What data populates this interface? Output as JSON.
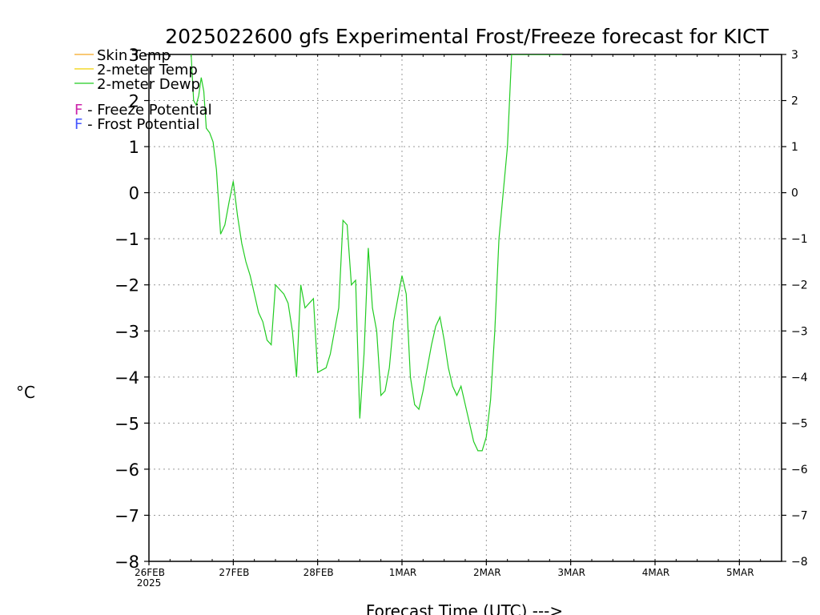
{
  "chart_data": {
    "type": "line",
    "title": "2025022600 gfs Experimental Frost/Freeze forecast for KICT",
    "ylabel": "°C",
    "xlabel": "Forecast Time (UTC) --->",
    "ylim": [
      -8,
      3
    ],
    "xlim": [
      0,
      7.5
    ],
    "grid": true,
    "y_ticks": [
      "−8",
      "−7",
      "−6",
      "−5",
      "−4",
      "−3",
      "−2",
      "−1",
      "0",
      "1",
      "2",
      "3"
    ],
    "y_ticks_right": [
      "−8",
      "−7",
      "−6",
      "−5",
      "−4",
      "−3",
      "−2",
      "−1",
      "0",
      "1",
      "2",
      "3"
    ],
    "x_ticks": [
      {
        "label": "26FEB",
        "sub": "2025",
        "value": 0
      },
      {
        "label": "27FEB",
        "value": 1
      },
      {
        "label": "28FEB",
        "value": 2
      },
      {
        "label": "1MAR",
        "value": 3
      },
      {
        "label": "2MAR",
        "value": 4
      },
      {
        "label": "3MAR",
        "value": 5
      },
      {
        "label": "4MAR",
        "value": 6
      },
      {
        "label": "5MAR",
        "value": 7
      }
    ],
    "legend": [
      {
        "name": "Skin Temp",
        "color": "#f5a623",
        "type": "line"
      },
      {
        "name": "2-meter Temp",
        "color": "#f0d000",
        "type": "line"
      },
      {
        "name": "2-meter Dewp",
        "color": "#22cc22",
        "type": "line"
      },
      {
        "name": "F - Freeze Potential",
        "color": "#cc22aa",
        "type": "marker"
      },
      {
        "name": "F - Frost Potential",
        "color": "#4455ff",
        "type": "marker"
      }
    ],
    "series": [
      {
        "name": "2-meter Dewp",
        "color": "#22cc22",
        "x": [
          0.5,
          0.53,
          0.56,
          0.59,
          0.62,
          0.65,
          0.68,
          0.72,
          0.76,
          0.8,
          0.85,
          0.9,
          0.95,
          1.0,
          1.05,
          1.1,
          1.15,
          1.2,
          1.25,
          1.3,
          1.35,
          1.4,
          1.45,
          1.5,
          1.55,
          1.6,
          1.65,
          1.7,
          1.75,
          1.8,
          1.85,
          1.9,
          1.95,
          2.0,
          2.05,
          2.1,
          2.15,
          2.2,
          2.25,
          2.3,
          2.35,
          2.4,
          2.45,
          2.5,
          2.55,
          2.6,
          2.65,
          2.7,
          2.75,
          2.8,
          2.85,
          2.9,
          2.95,
          3.0,
          3.05,
          3.1,
          3.15,
          3.2,
          3.25,
          3.3,
          3.35,
          3.4,
          3.45,
          3.5,
          3.55,
          3.6,
          3.65,
          3.7,
          3.75,
          3.8,
          3.85,
          3.9,
          3.95,
          4.0,
          4.05,
          4.1,
          4.15,
          4.2,
          4.25,
          4.3,
          4.35,
          4.4,
          4.45,
          4.5,
          4.55,
          4.6,
          4.65,
          4.7,
          4.75,
          4.8,
          4.85,
          4.9
        ],
        "values": [
          3.0,
          2.0,
          1.9,
          2.1,
          2.5,
          2.2,
          1.4,
          1.3,
          1.1,
          0.5,
          -0.9,
          -0.7,
          -0.2,
          0.25,
          -0.5,
          -1.1,
          -1.5,
          -1.8,
          -2.2,
          -2.6,
          -2.8,
          -3.2,
          -3.3,
          -2.0,
          -2.1,
          -2.2,
          -2.4,
          -3.0,
          -4.0,
          -2.0,
          -2.5,
          -2.4,
          -2.3,
          -3.9,
          -3.85,
          -3.8,
          -3.5,
          -3.0,
          -2.5,
          -0.6,
          -0.7,
          -2.0,
          -1.9,
          -4.9,
          -3.5,
          -1.2,
          -2.5,
          -3.0,
          -4.4,
          -4.3,
          -3.8,
          -2.8,
          -2.3,
          -1.8,
          -2.2,
          -4.0,
          -4.6,
          -4.7,
          -4.3,
          -3.8,
          -3.3,
          -2.9,
          -2.7,
          -3.2,
          -3.8,
          -4.2,
          -4.4,
          -4.2,
          -4.6,
          -5.0,
          -5.4,
          -5.6,
          -5.6,
          -5.3,
          -4.5,
          -3.0,
          -1.0,
          0.0,
          1.0,
          3.0,
          3.0,
          3.0,
          3.0,
          3.0,
          3.0,
          3.0,
          3.0,
          3.0,
          3.0,
          3.0,
          3.0,
          3.0
        ]
      }
    ]
  }
}
